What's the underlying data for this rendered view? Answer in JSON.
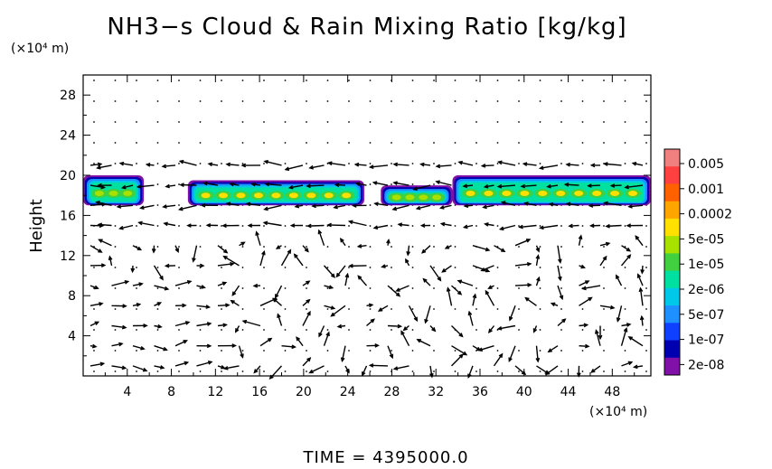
{
  "chart_data": {
    "type": "heatmap",
    "title": "NH3−s Cloud & Rain Mixing Ratio [kg/kg]",
    "y_unit": "(×10⁴ m)",
    "x_unit": "(×10⁴ m)",
    "ylabel": "Height",
    "xlabel": "",
    "footer": "TIME  =  4395000.0",
    "xlim": [
      0,
      51.5
    ],
    "ylim": [
      0,
      30
    ],
    "x_ticks": [
      4,
      8,
      12,
      16,
      20,
      24,
      28,
      32,
      36,
      40,
      44,
      48
    ],
    "y_ticks": [
      4,
      8,
      12,
      16,
      20,
      24,
      28
    ],
    "colorbar": {
      "labels": [
        "0.005",
        "0.001",
        "0.0002",
        "5e-05",
        "1e-05",
        "2e-06",
        "5e-07",
        "1e-07",
        "2e-08"
      ],
      "colors": [
        "#f08080",
        "#ff4040",
        "#ff6000",
        "#ffa500",
        "#ffe000",
        "#a8e000",
        "#40d040",
        "#00e0a0",
        "#00c8e8",
        "#1e90ff",
        "#1040ff",
        "#0000b0",
        "#8010a8"
      ]
    },
    "cloud_layers": [
      {
        "x_start": 0,
        "x_end": 5.5,
        "y_bottom": 17,
        "y_top": 20,
        "peak": "1e-05"
      },
      {
        "x_start": 9.5,
        "x_end": 25.5,
        "y_bottom": 17,
        "y_top": 19.5,
        "peak": "5e-05"
      },
      {
        "x_start": 27,
        "x_end": 33.5,
        "y_bottom": 17,
        "y_top": 19,
        "peak": "1e-05"
      },
      {
        "x_start": 33.5,
        "x_end": 51.5,
        "y_bottom": 17,
        "y_top": 20,
        "peak": "5e-05"
      }
    ],
    "vector_field": {
      "description_visible": "wind arrows",
      "upper_band_direction": "leftward",
      "lower_band_rows_y": [
        1,
        3,
        5,
        7,
        9,
        11,
        13,
        15,
        17,
        19,
        21
      ]
    },
    "grid": false,
    "legend_position": "right"
  }
}
